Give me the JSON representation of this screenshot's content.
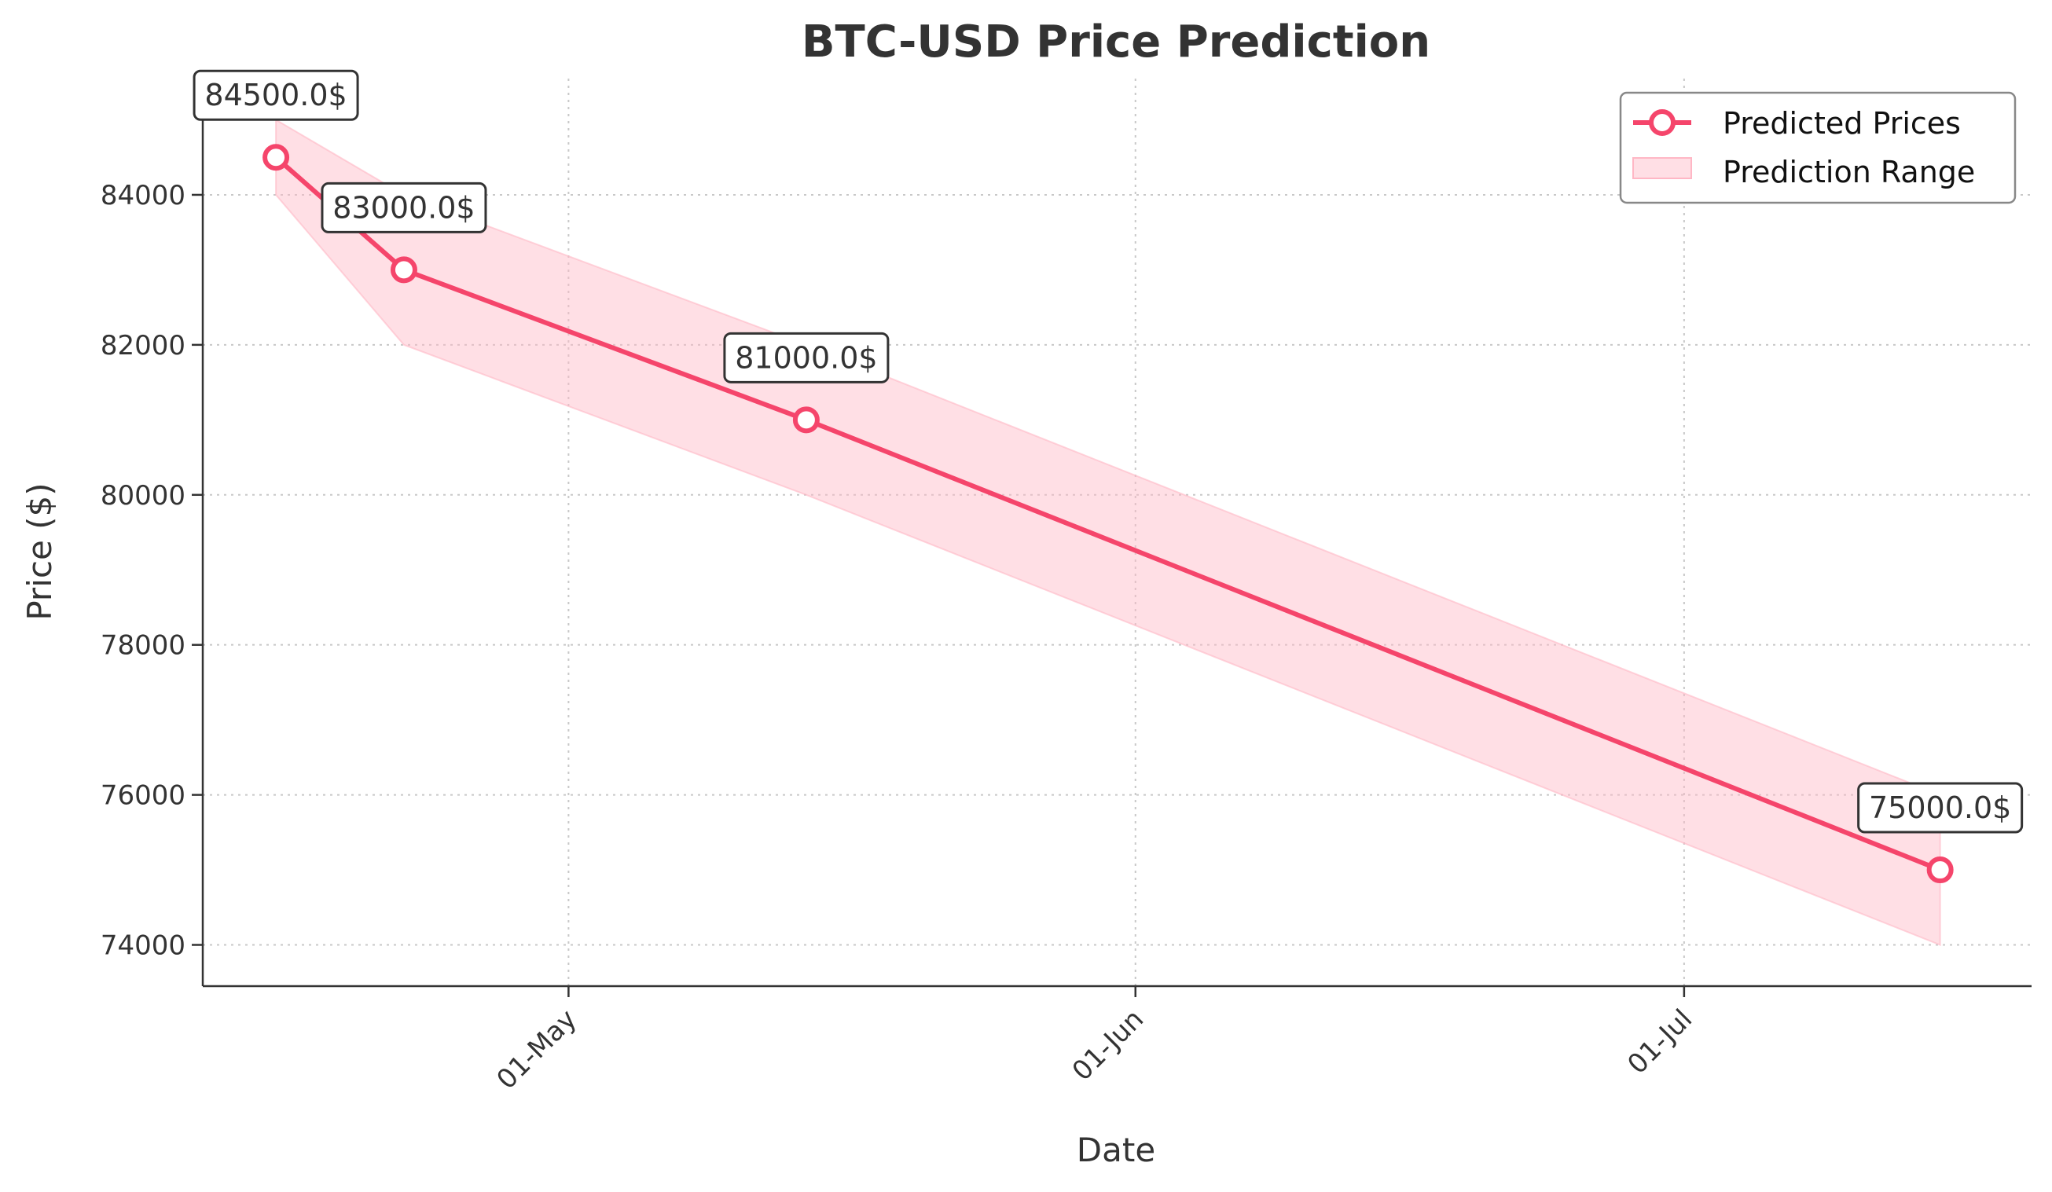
{
  "chart_data": {
    "type": "line",
    "title": "BTC-USD Price Prediction",
    "xlabel": "Date",
    "ylabel": "Price ($)",
    "x_dates": [
      "2025-04-15",
      "2025-04-22",
      "2025-05-14",
      "2025-07-15"
    ],
    "xlim": [
      "2025-04-11",
      "2025-07-20"
    ],
    "ylim": [
      73450,
      85550
    ],
    "x_ticks": [
      {
        "date": "2025-05-01",
        "label": "01-May"
      },
      {
        "date": "2025-06-01",
        "label": "01-Jun"
      },
      {
        "date": "2025-07-01",
        "label": "01-Jul"
      }
    ],
    "y_ticks": [
      74000,
      76000,
      78000,
      80000,
      82000,
      84000
    ],
    "grid": true,
    "legend_position": "top-right",
    "colors": {
      "line": "#f5456b",
      "band": "#ffb7c5",
      "text": "#333333"
    },
    "series": [
      {
        "name": "Predicted Prices",
        "values": [
          84500,
          83000,
          81000,
          75000
        ]
      }
    ],
    "range": {
      "name": "Prediction Range",
      "lower": [
        84000,
        82000,
        80000,
        74000
      ],
      "upper": [
        85000,
        84000,
        82000,
        76000
      ]
    },
    "annotations": [
      "84500.0$",
      "83000.0$",
      "81000.0$",
      "75000.0$"
    ]
  }
}
